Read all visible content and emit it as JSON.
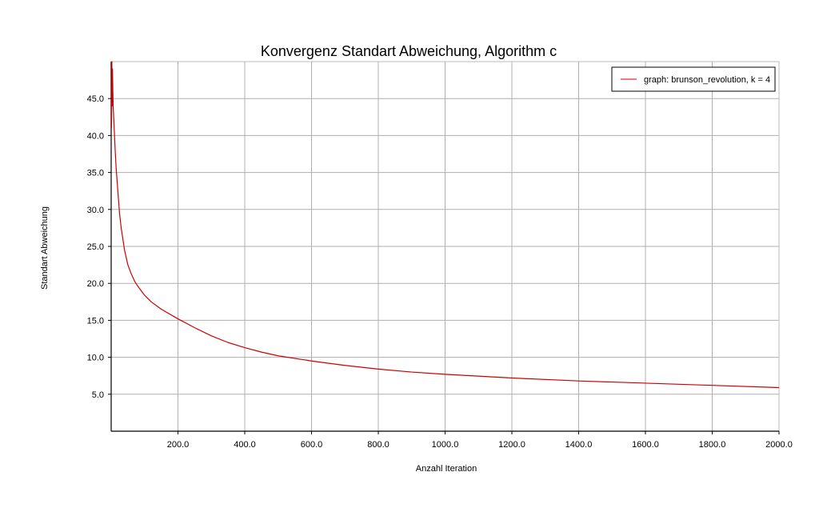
{
  "chart_data": {
    "type": "line",
    "title": "Konvergenz Standart Abweichung, Algorithm c",
    "xlabel": "Anzahl Iteration",
    "ylabel": "Standart Abweichung",
    "xlim": [
      0,
      2000
    ],
    "ylim": [
      0,
      50
    ],
    "x_ticks": [
      200,
      400,
      600,
      800,
      1000,
      1200,
      1400,
      1600,
      1800,
      2000
    ],
    "x_tick_labels": [
      "200.0",
      "400.0",
      "600.0",
      "800.0",
      "1000.0",
      "1200.0",
      "1400.0",
      "1600.0",
      "1800.0",
      "2000.0"
    ],
    "y_ticks": [
      5,
      10,
      15,
      20,
      25,
      30,
      35,
      40,
      45
    ],
    "y_tick_labels": [
      "5.0",
      "10.0",
      "15.0",
      "20.0",
      "25.0",
      "30.0",
      "35.0",
      "40.0",
      "45.0"
    ],
    "grid": true,
    "legend_position": "top-right",
    "series": [
      {
        "name": "graph: brunson_revolution, k = 4",
        "color": "#cc0000",
        "x": [
          1,
          2,
          3,
          4,
          5,
          6,
          7,
          8,
          10,
          12,
          15,
          20,
          25,
          30,
          40,
          50,
          60,
          70,
          80,
          100,
          120,
          150,
          200,
          250,
          300,
          350,
          400,
          450,
          500,
          600,
          700,
          800,
          900,
          1000,
          1200,
          1400,
          1600,
          1800,
          2000
        ],
        "y": [
          41,
          50,
          44,
          49,
          46,
          44,
          43,
          42,
          40,
          38,
          35.5,
          32.5,
          29.5,
          27.5,
          24.5,
          22.5,
          21.3,
          20.3,
          19.6,
          18.4,
          17.5,
          16.5,
          15.2,
          14,
          12.9,
          12,
          11.3,
          10.7,
          10.2,
          9.5,
          8.9,
          8.4,
          8.0,
          7.7,
          7.2,
          6.8,
          6.5,
          6.2,
          5.9
        ]
      }
    ]
  }
}
